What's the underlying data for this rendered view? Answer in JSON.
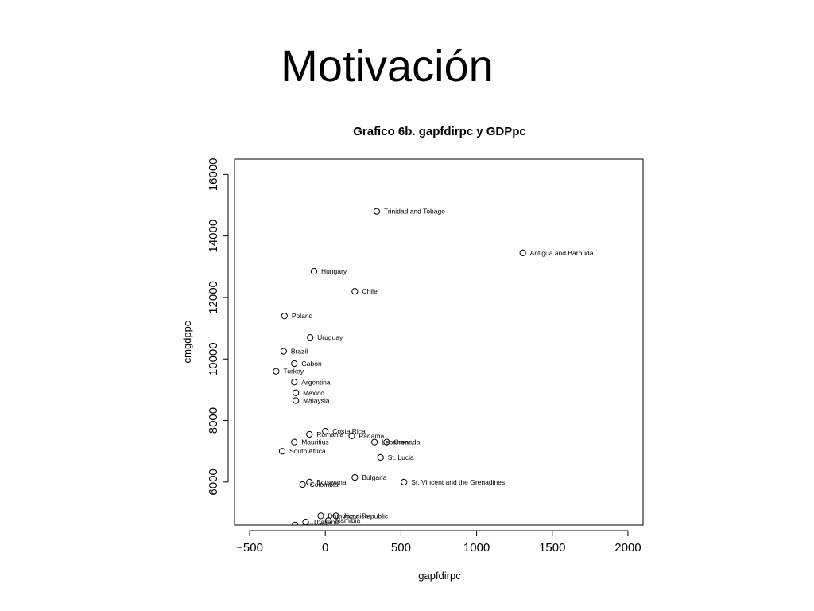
{
  "slide": {
    "title": "Motivación"
  },
  "chart_data": {
    "type": "scatter",
    "title": "Grafico 6b. gapfdirpc y GDPpc",
    "xlabel": "gapfdirpc",
    "ylabel": "cmgdppc",
    "xlim": [
      -600,
      2100
    ],
    "ylim": [
      4600,
      16500
    ],
    "xticks": [
      -500,
      0,
      500,
      1000,
      1500,
      2000
    ],
    "yticks": [
      6000,
      8000,
      10000,
      12000,
      14000,
      16000
    ],
    "grid": false,
    "legend": "none",
    "points": [
      {
        "label": "Trinidad and Tobago",
        "x": 340,
        "y": 14800
      },
      {
        "label": "Antigua and Barbuda",
        "x": 1305,
        "y": 13450
      },
      {
        "label": "Hungary",
        "x": -75,
        "y": 12850
      },
      {
        "label": "Chile",
        "x": 195,
        "y": 12200
      },
      {
        "label": "Poland",
        "x": -270,
        "y": 11400
      },
      {
        "label": "Uruguay",
        "x": -100,
        "y": 10700
      },
      {
        "label": "Brazil",
        "x": -275,
        "y": 10250
      },
      {
        "label": "Gabon",
        "x": -205,
        "y": 9850
      },
      {
        "label": "Turkey",
        "x": -325,
        "y": 9600
      },
      {
        "label": "Argentina",
        "x": -205,
        "y": 9250
      },
      {
        "label": "Mexico",
        "x": -195,
        "y": 8900
      },
      {
        "label": "Malaysia",
        "x": -195,
        "y": 8650
      },
      {
        "label": "Costa Rica",
        "x": 0,
        "y": 7650
      },
      {
        "label": "Romania",
        "x": -105,
        "y": 7550
      },
      {
        "label": "Panama",
        "x": 175,
        "y": 7500
      },
      {
        "label": "Mauritius",
        "x": -205,
        "y": 7300
      },
      {
        "label": "Lebanon",
        "x": 325,
        "y": 7300
      },
      {
        "label": "Grenada",
        "x": 405,
        "y": 7300
      },
      {
        "label": "South Africa",
        "x": -285,
        "y": 7000
      },
      {
        "label": "St. Lucia",
        "x": 365,
        "y": 6800
      },
      {
        "label": "Bulgaria",
        "x": 195,
        "y": 6150
      },
      {
        "label": "St. Vincent and the Grenadines",
        "x": 520,
        "y": 6000
      },
      {
        "label": "Botswana",
        "x": -105,
        "y": 6000
      },
      {
        "label": "Colombia",
        "x": -150,
        "y": 5920
      },
      {
        "label": "Dominican Republic",
        "x": -30,
        "y": 4900
      },
      {
        "label": "Jamaica",
        "x": 70,
        "y": 4900
      },
      {
        "label": "Namibia",
        "x": 20,
        "y": 4750
      },
      {
        "label": "Thailand",
        "x": -130,
        "y": 4700
      },
      {
        "label": "Ecuador",
        "x": -200,
        "y": 4600
      }
    ]
  }
}
